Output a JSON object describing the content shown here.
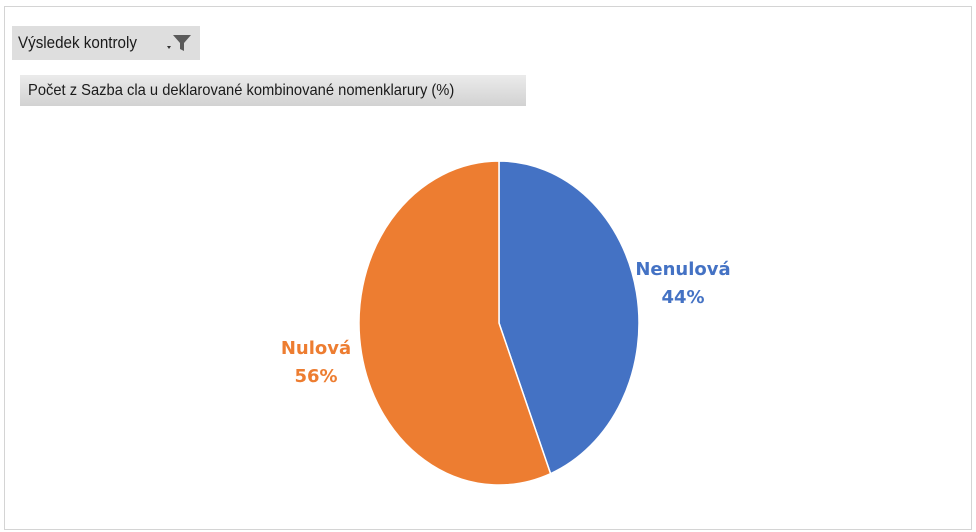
{
  "filter": {
    "label": "Výsledek kontroly",
    "icon": "filter-icon"
  },
  "value_field": {
    "label": "Počet z Sazba cla u deklarované kombinované nomenklarury (%)"
  },
  "chart_data": {
    "type": "pie",
    "title": "",
    "slices": [
      {
        "name": "Nenulová",
        "value": 44,
        "label": "44%",
        "color": "#4472C4"
      },
      {
        "name": "Nulová",
        "value": 56,
        "label": "56%",
        "color": "#ED7D31"
      }
    ],
    "start_angle": "12 o'clock",
    "direction": "clockwise",
    "legend": "none",
    "data_labels": "outside"
  }
}
